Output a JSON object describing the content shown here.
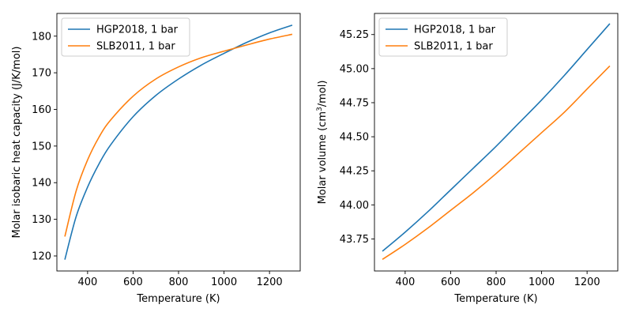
{
  "chart_data": [
    {
      "type": "line",
      "xlabel": "Temperature (K)",
      "ylabel": "Molar isobaric heat capacity (J/K/mol)",
      "xlim": [
        265,
        1335
      ],
      "ylim": [
        115.9,
        186.2
      ],
      "xticks": [
        400,
        600,
        800,
        1000,
        1200
      ],
      "xtick_labels": [
        "400",
        "600",
        "800",
        "1000",
        "1200"
      ],
      "yticks": [
        120,
        130,
        140,
        150,
        160,
        170,
        180
      ],
      "ytick_labels": [
        "120",
        "130",
        "140",
        "150",
        "160",
        "170",
        "180"
      ],
      "legend_position": "top-left",
      "grid": false,
      "x": [
        300,
        350,
        400,
        450,
        500,
        600,
        700,
        800,
        900,
        1000,
        1100,
        1200,
        1300
      ],
      "series": [
        {
          "name": "HGP2018, 1 bar",
          "color": "#1f77b4",
          "values": [
            119.0,
            130.8,
            138.8,
            145.1,
            150.2,
            158.0,
            163.8,
            168.3,
            172.1,
            175.3,
            178.3,
            180.9,
            183.0
          ]
        },
        {
          "name": "SLB2011, 1 bar",
          "color": "#ff7f0e",
          "values": [
            125.3,
            137.8,
            146.2,
            152.4,
            157.0,
            163.6,
            168.3,
            171.6,
            174.1,
            175.9,
            177.6,
            179.2,
            180.5
          ]
        }
      ]
    },
    {
      "type": "line",
      "xlabel": "Temperature (K)",
      "ylabel": "Molar volume (cm",
      "ylabel_sup": "3",
      "ylabel_tail": "/mol)",
      "xlim": [
        265,
        1335
      ],
      "ylim": [
        43.515,
        45.405
      ],
      "xticks": [
        400,
        600,
        800,
        1000,
        1200
      ],
      "xtick_labels": [
        "400",
        "600",
        "800",
        "1000",
        "1200"
      ],
      "yticks": [
        43.75,
        44.0,
        44.25,
        44.5,
        44.75,
        45.0,
        45.25
      ],
      "ytick_labels": [
        "43.75",
        "44.00",
        "44.25",
        "44.50",
        "44.75",
        "45.00",
        "45.25"
      ],
      "legend_position": "top-left",
      "grid": false,
      "x": [
        300,
        400,
        500,
        600,
        700,
        800,
        900,
        1000,
        1100,
        1200,
        1300
      ],
      "series": [
        {
          "name": "HGP2018, 1 bar",
          "color": "#1f77b4",
          "values": [
            43.66,
            43.8,
            43.95,
            44.11,
            44.27,
            44.43,
            44.6,
            44.77,
            44.95,
            45.14,
            45.33
          ]
        },
        {
          "name": "SLB2011, 1 bar",
          "color": "#ff7f0e",
          "values": [
            43.6,
            43.71,
            43.83,
            43.96,
            44.09,
            44.23,
            44.38,
            44.53,
            44.68,
            44.85,
            45.02
          ]
        }
      ]
    }
  ]
}
